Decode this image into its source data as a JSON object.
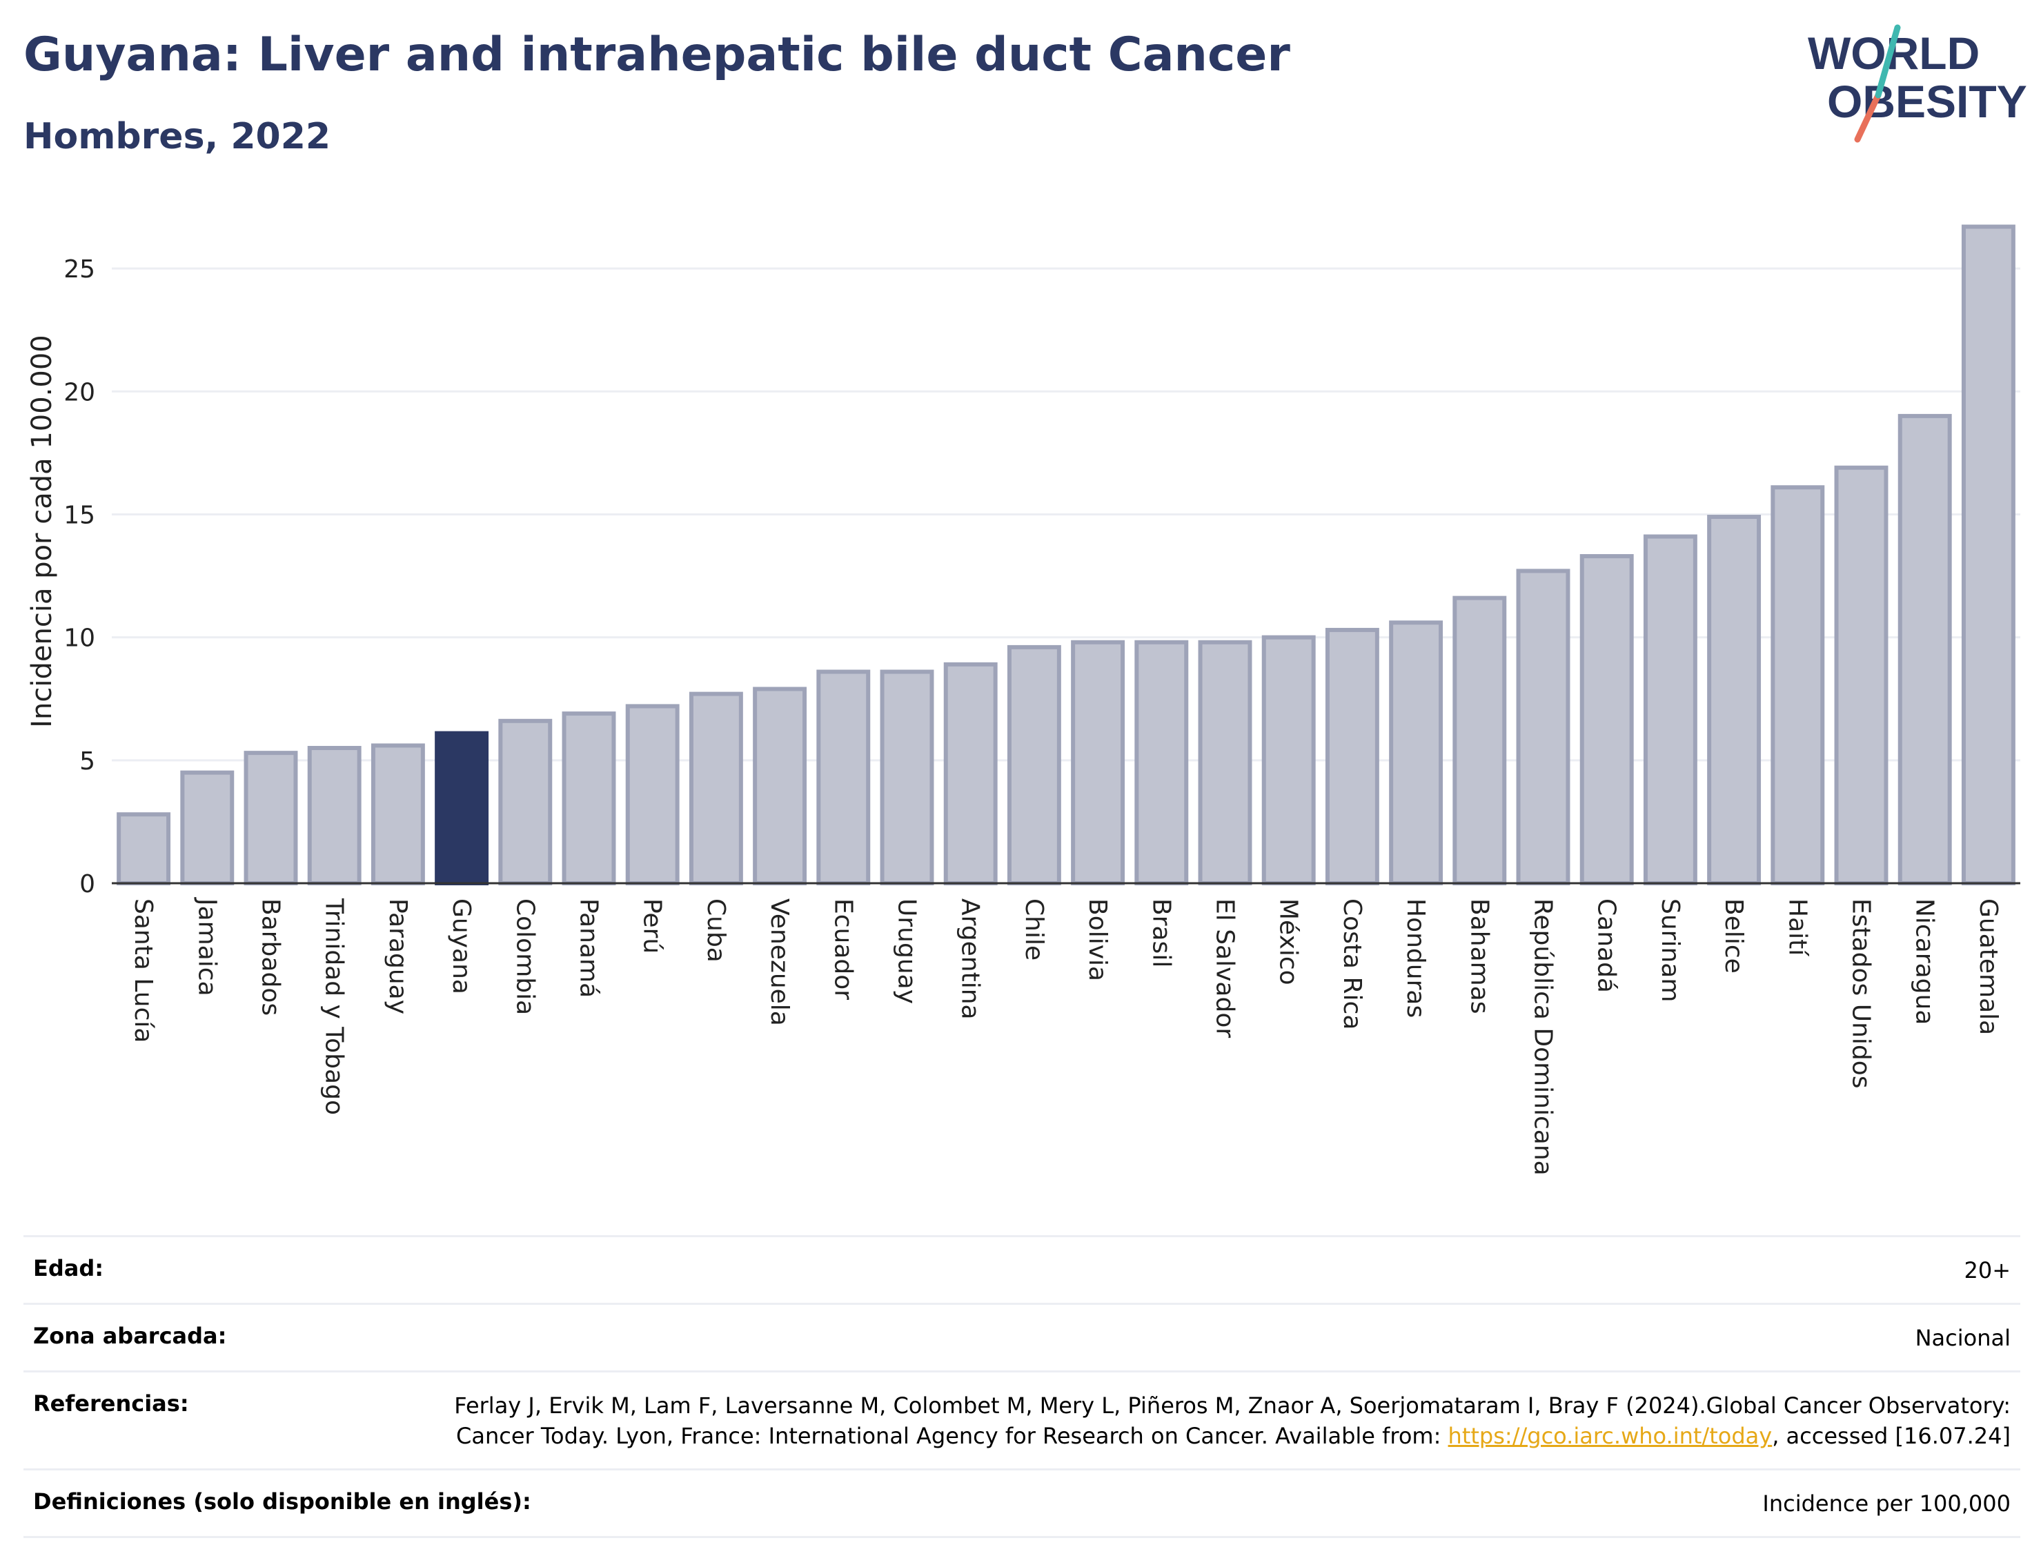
{
  "header": {
    "title": "Guyana: Liver and intrahepatic bile duct Cancer",
    "subtitle": "Hombres, 2022"
  },
  "logo": {
    "line1": "WORLD",
    "line2": "OBESITY",
    "icon": "world-obesity-logo"
  },
  "colors": {
    "highlight": "#2b3863",
    "bar_fill": "#c0c3d0",
    "bar_stroke": "#9ea3b8",
    "grid": "#eceef3"
  },
  "chart_data": {
    "type": "bar",
    "ylabel": "Incidencia por cada 100.000",
    "ylim": [
      0,
      27.5
    ],
    "yticks": [
      0,
      5,
      10,
      15,
      20,
      25
    ],
    "grid": true,
    "highlight": "Guyana",
    "categories": [
      "Santa Lucía",
      "Jamaica",
      "Barbados",
      "Trinidad y Tobago",
      "Paraguay",
      "Guyana",
      "Colombia",
      "Panamá",
      "Perú",
      "Cuba",
      "Venezuela",
      "Ecuador",
      "Uruguay",
      "Argentina",
      "Chile",
      "Bolivia",
      "Brasil",
      "El Salvador",
      "México",
      "Costa Rica",
      "Honduras",
      "Bahamas",
      "República Dominicana",
      "Canadá",
      "Surinam",
      "Belice",
      "Haití",
      "Estados Unidos",
      "Nicaragua",
      "Guatemala"
    ],
    "values": [
      2.8,
      4.5,
      5.3,
      5.5,
      5.6,
      6.1,
      6.6,
      6.9,
      7.2,
      7.7,
      7.9,
      8.6,
      8.6,
      8.9,
      9.6,
      9.8,
      9.8,
      9.8,
      10.0,
      10.3,
      10.6,
      11.6,
      12.7,
      13.3,
      14.1,
      14.9,
      16.1,
      16.9,
      19.0,
      26.7
    ]
  },
  "meta": {
    "age_label": "Edad:",
    "age_value": "20+",
    "zone_label": "Zona abarcada:",
    "zone_value": "Nacional",
    "ref_label": "Referencias:",
    "ref_text": "Ferlay J, Ervik M, Lam F, Laversanne M, Colombet M, Mery L, Piñeros M, Znaor A, Soerjomataram I, Bray F (2024).Global Cancer Observatory: Cancer Today. Lyon, France: International Agency for Research on Cancer. Available from: ",
    "ref_link": "https://gco.iarc.who.int/today",
    "ref_suffix": ", accessed [16.07.24]",
    "def_label": "Definiciones (solo disponible en inglés):",
    "def_value": "Incidence per 100,000"
  }
}
